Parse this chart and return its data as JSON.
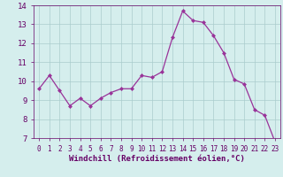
{
  "x": [
    0,
    1,
    2,
    3,
    4,
    5,
    6,
    7,
    8,
    9,
    10,
    11,
    12,
    13,
    14,
    15,
    16,
    17,
    18,
    19,
    20,
    21,
    22,
    23
  ],
  "y": [
    9.6,
    10.3,
    9.5,
    8.7,
    9.1,
    8.7,
    9.1,
    9.4,
    9.6,
    9.6,
    10.3,
    10.2,
    10.5,
    12.3,
    13.7,
    13.2,
    13.1,
    12.4,
    11.5,
    10.1,
    9.85,
    8.5,
    8.2,
    6.8
  ],
  "line_color": "#993399",
  "marker": "D",
  "marker_size": 2.0,
  "bg_color": "#d5eeed",
  "grid_color": "#aacccc",
  "xlabel": "Windchill (Refroidissement éolien,°C)",
  "xlabel_color": "#660066",
  "tick_color": "#660066",
  "ylim": [
    7,
    14
  ],
  "xlim": [
    -0.5,
    23.5
  ],
  "yticks": [
    7,
    8,
    9,
    10,
    11,
    12,
    13,
    14
  ],
  "xticks": [
    0,
    1,
    2,
    3,
    4,
    5,
    6,
    7,
    8,
    9,
    10,
    11,
    12,
    13,
    14,
    15,
    16,
    17,
    18,
    19,
    20,
    21,
    22,
    23
  ],
  "tick_fontsize": 6.5,
  "xlabel_fontsize": 6.5
}
